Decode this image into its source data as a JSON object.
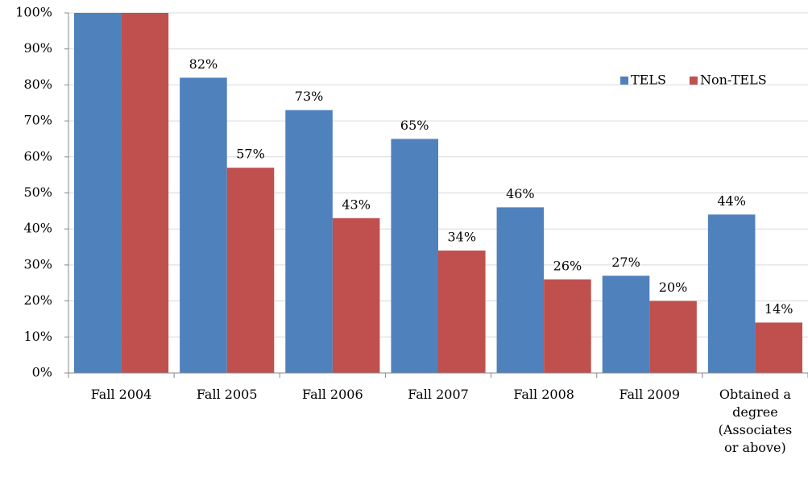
{
  "chart_data": {
    "type": "bar",
    "categories": [
      "Fall 2004",
      "Fall 2005",
      "Fall 2006",
      "Fall 2007",
      "Fall 2008",
      "Fall 2009",
      "Obtained a degree (Associates or above)"
    ],
    "series": [
      {
        "name": "TELS",
        "color": "#4f81bd",
        "values": [
          100,
          82,
          73,
          65,
          46,
          27,
          44
        ],
        "value_labels": [
          null,
          "82%",
          "73%",
          "65%",
          "46%",
          "27%",
          "44%"
        ]
      },
      {
        "name": "Non-TELS",
        "color": "#c0504d",
        "values": [
          100,
          57,
          43,
          34,
          26,
          20,
          14
        ],
        "value_labels": [
          null,
          "57%",
          "43%",
          "34%",
          "26%",
          "20%",
          "14%"
        ]
      }
    ],
    "ylim": [
      0,
      100
    ],
    "yticks": [
      {
        "value": 0,
        "label": "0%"
      },
      {
        "value": 10,
        "label": "10%"
      },
      {
        "value": 20,
        "label": "20%"
      },
      {
        "value": 30,
        "label": "30%"
      },
      {
        "value": 40,
        "label": "40%"
      },
      {
        "value": 50,
        "label": "50%"
      },
      {
        "value": 60,
        "label": "60%"
      },
      {
        "value": 70,
        "label": "70%"
      },
      {
        "value": 80,
        "label": "80%"
      },
      {
        "value": 90,
        "label": "90%"
      },
      {
        "value": 100,
        "label": "100%"
      }
    ],
    "grid": true
  }
}
